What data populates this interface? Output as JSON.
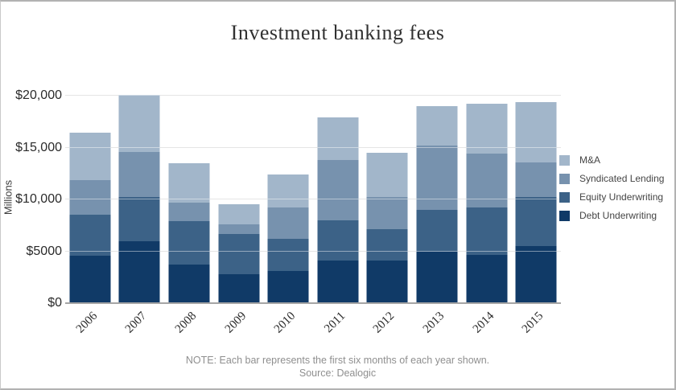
{
  "frame": {
    "background": "#ffffff",
    "border_color": "#b2b2b2"
  },
  "chart_data": {
    "type": "bar",
    "stacked": true,
    "title": "Investment banking fees",
    "ylabel": "Millions",
    "xlabel": "",
    "categories": [
      "2006",
      "2007",
      "2008",
      "2009",
      "2010",
      "2011",
      "2012",
      "2013",
      "2014",
      "2015"
    ],
    "series": [
      {
        "name": "M&A",
        "color": "#a2b6ca",
        "values": [
          4500,
          5500,
          3800,
          1900,
          3200,
          4100,
          4300,
          3800,
          4800,
          5800
        ]
      },
      {
        "name": "Syndicated Lending",
        "color": "#7792ae",
        "values": [
          3400,
          4400,
          1800,
          900,
          3000,
          5800,
          3100,
          6200,
          5200,
          3400
        ]
      },
      {
        "name": "Equity Underwriting",
        "color": "#3c6287",
        "values": [
          3900,
          4200,
          4200,
          3900,
          3100,
          3900,
          3000,
          4000,
          4550,
          4700
        ]
      },
      {
        "name": "Debt Underwriting",
        "color": "#103a67",
        "values": [
          4600,
          6000,
          3700,
          2800,
          3100,
          4100,
          4100,
          5000,
          4650,
          5500
        ]
      }
    ],
    "totals": [
      16400,
      20100,
      13500,
      9500,
      12400,
      17900,
      14500,
      19000,
      19200,
      19400
    ],
    "y_ticks": [
      {
        "value": 0,
        "label": "$0"
      },
      {
        "value": 5000,
        "label": "$5000"
      },
      {
        "value": 10000,
        "label": "$10,000"
      },
      {
        "value": 15000,
        "label": "$15,000"
      },
      {
        "value": 20000,
        "label": "$20,000"
      }
    ],
    "ylim": [
      0,
      20000
    ],
    "grid": true,
    "legend_position": "right",
    "note": {
      "line1": "NOTE: Each bar represents the first six months of each year shown.",
      "line2": "Source: Dealogic"
    }
  }
}
